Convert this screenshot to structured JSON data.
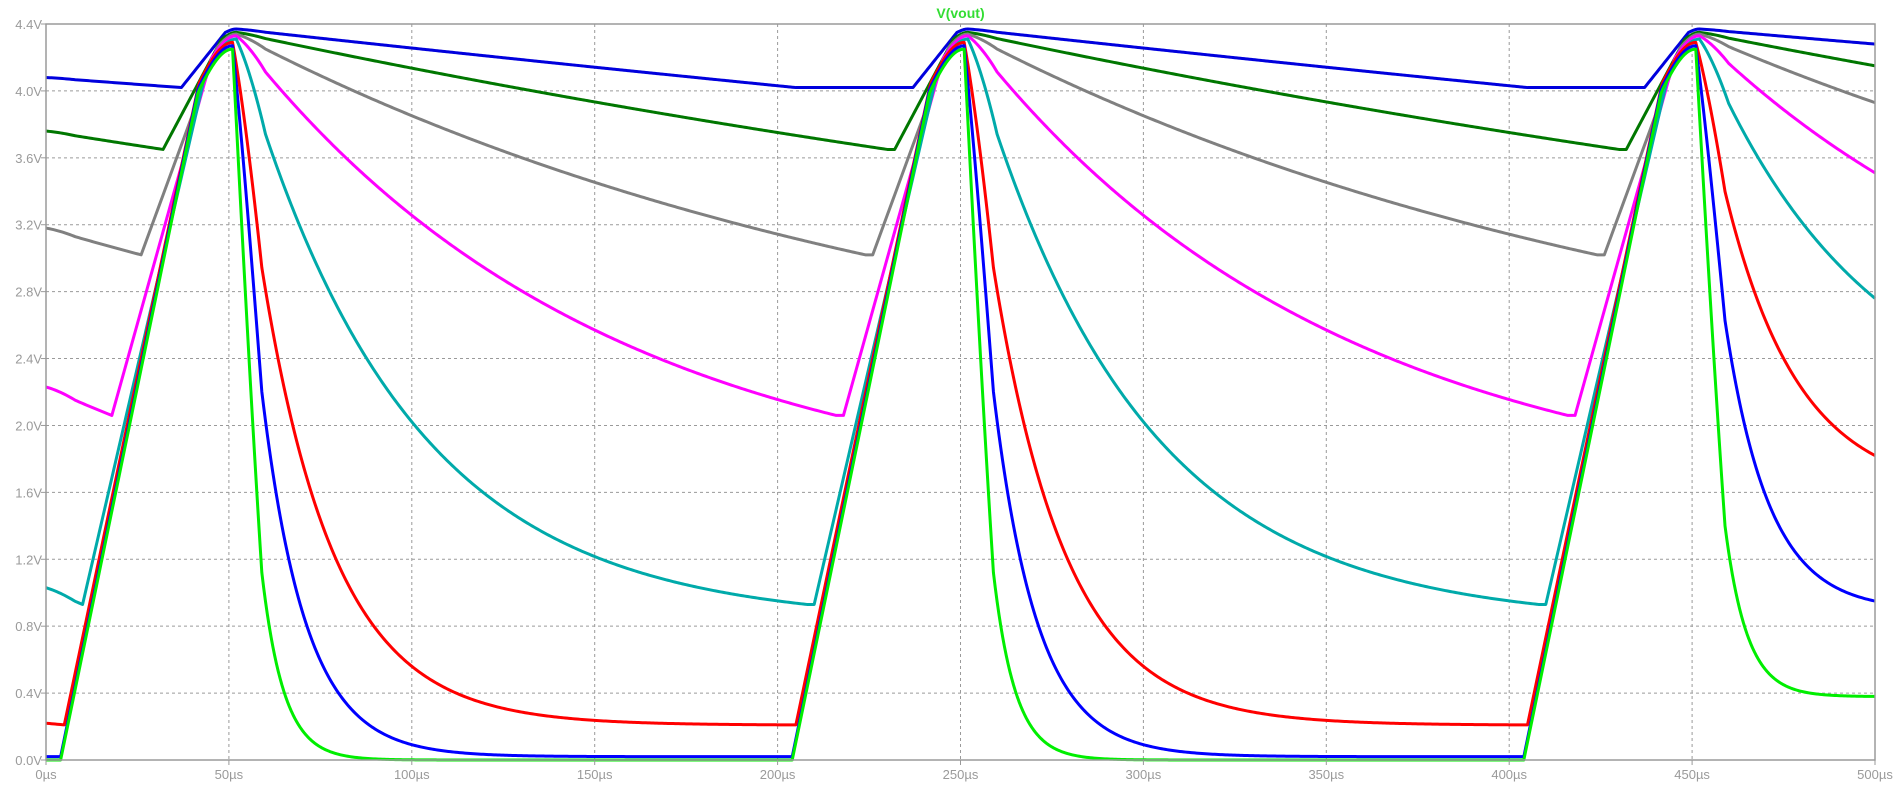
{
  "chart_data": {
    "type": "line",
    "title": "V(vout)",
    "title_color": "#33dd33",
    "xlim": [
      0,
      500
    ],
    "ylim": [
      0,
      4.4
    ],
    "x_ticks": [
      0,
      50,
      100,
      150,
      200,
      250,
      300,
      350,
      400,
      450,
      500
    ],
    "x_tick_labels": [
      "0µs",
      "50µs",
      "100µs",
      "150µs",
      "200µs",
      "250µs",
      "300µs",
      "350µs",
      "400µs",
      "450µs",
      "500µs"
    ],
    "y_ticks": [
      0,
      0.4,
      0.8,
      1.2,
      1.6,
      2.0,
      2.4,
      2.8,
      3.2,
      3.6,
      4.0,
      4.4
    ],
    "y_tick_labels": [
      "0.0V",
      "0.4V",
      "0.8V",
      "1.2V",
      "1.6V",
      "2.0V",
      "2.4V",
      "2.8V",
      "3.2V",
      "3.6V",
      "4.0V",
      "4.4V"
    ],
    "grid": true,
    "period_us": 200,
    "series": [
      {
        "color": "#0000dd",
        "tau_us": 1500,
        "x": [
          0,
          37,
          52,
          205,
          237,
          252,
          405,
          437,
          452,
          500
        ],
        "y": [
          4.08,
          4.02,
          4.37,
          4.02,
          4.02,
          4.37,
          4.02,
          4.02,
          4.37,
          4.28
        ]
      },
      {
        "color": "#007700",
        "tau_us": 500,
        "x": [
          0,
          32,
          52,
          230,
          232,
          252,
          430,
          432,
          452,
          500
        ],
        "y": [
          3.76,
          3.65,
          4.35,
          3.65,
          3.65,
          4.35,
          3.65,
          3.65,
          4.35,
          4.15
        ]
      },
      {
        "color": "#808080",
        "tau_us": 200,
        "x": [
          0,
          26,
          52,
          224,
          226,
          252,
          424,
          426,
          452,
          500
        ],
        "y": [
          3.18,
          3.02,
          4.34,
          3.02,
          3.02,
          4.34,
          3.02,
          3.02,
          4.34,
          3.93
        ]
      },
      {
        "color": "#ff00ff",
        "tau_us": 100,
        "x": [
          0,
          18,
          52,
          216,
          218,
          252,
          416,
          418,
          452,
          500
        ],
        "y": [
          2.23,
          2.06,
          4.33,
          2.06,
          2.06,
          4.33,
          2.06,
          2.06,
          4.33,
          3.51
        ]
      },
      {
        "color": "#00aaaa",
        "tau_us": 45,
        "x": [
          0,
          10,
          52,
          208,
          210,
          252,
          408,
          410,
          452,
          500
        ],
        "y": [
          1.03,
          0.93,
          4.31,
          0.93,
          0.93,
          4.31,
          0.93,
          0.93,
          4.31,
          2.76
        ]
      },
      {
        "color": "#ff0000",
        "tau_us": 20,
        "x": [
          0,
          5,
          51,
          203,
          205,
          251,
          403,
          405,
          451,
          500
        ],
        "y": [
          0.22,
          0.21,
          4.29,
          0.21,
          0.21,
          4.29,
          0.21,
          0.21,
          4.29,
          1.82
        ]
      },
      {
        "color": "#0000ff",
        "tau_us": 12,
        "x": [
          0,
          4,
          51,
          202,
          204,
          251,
          402,
          404,
          451,
          500
        ],
        "y": [
          0.02,
          0.02,
          4.27,
          0.02,
          0.02,
          4.27,
          0.02,
          0.02,
          4.27,
          0.95
        ]
      },
      {
        "color": "#00ee00",
        "tau_us": 6,
        "x": [
          0,
          4,
          51,
          202,
          204,
          251,
          402,
          404,
          451,
          500
        ],
        "y": [
          0.0,
          0.0,
          4.25,
          0.0,
          0.0,
          4.25,
          0.0,
          0.0,
          4.25,
          0.38
        ]
      }
    ]
  },
  "colors": {
    "background": "#ffffff",
    "grid": "#9a9a9a",
    "frame": "#9a9a9a",
    "tick_text": "#9a9a9a"
  }
}
